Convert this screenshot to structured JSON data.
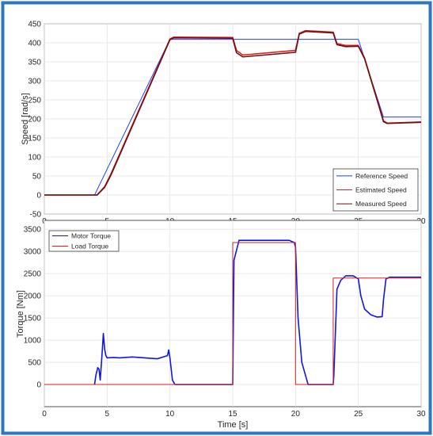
{
  "frame_color": "#2e75c2",
  "chart_data": [
    {
      "type": "line",
      "ylabel": "Speed [rad/s]",
      "xlabel": "",
      "xlim": [
        0,
        30
      ],
      "ylim": [
        -50,
        450
      ],
      "grid": true,
      "legend_position": "bottom-right",
      "xticks": [
        "0",
        "5",
        "10",
        "15",
        "20",
        "25",
        "30"
      ],
      "yticks": [
        "-50",
        "0",
        "50",
        "100",
        "150",
        "200",
        "250",
        "300",
        "350",
        "400",
        "450"
      ],
      "series": [
        {
          "name": "Reference Speed",
          "color": "#1f3fff",
          "x": [
            0,
            4.0,
            10.0,
            25.0,
            27.0,
            30.0
          ],
          "y": [
            0,
            0,
            409,
            409,
            205,
            205
          ]
        },
        {
          "name": "Estimated Speed",
          "color": "#e11d1d",
          "x": [
            0,
            4.2,
            4.8,
            5.3,
            10.0,
            10.3,
            15.0,
            15.3,
            15.8,
            20.0,
            20.3,
            20.8,
            23.0,
            23.3,
            24.0,
            25.0,
            25.5,
            26.6,
            27.0,
            27.3,
            30.0
          ],
          "y": [
            0,
            0,
            22,
            55,
            410,
            415,
            414,
            380,
            368,
            380,
            425,
            432,
            428,
            398,
            393,
            393,
            360,
            240,
            195,
            189,
            192
          ]
        },
        {
          "name": "Measured Speed",
          "color": "#6b0f0f",
          "x": [
            0,
            4.2,
            4.8,
            5.3,
            10.0,
            10.3,
            15.0,
            15.3,
            15.8,
            20.0,
            20.3,
            20.8,
            23.0,
            23.3,
            24.0,
            25.0,
            25.5,
            26.6,
            27.0,
            27.3,
            30.0
          ],
          "y": [
            0,
            0,
            20,
            52,
            408,
            413,
            412,
            374,
            363,
            375,
            423,
            430,
            426,
            395,
            390,
            391,
            358,
            238,
            193,
            188,
            191
          ]
        }
      ]
    },
    {
      "type": "line",
      "ylabel": "Torque [Nm]",
      "xlabel": "Time [s]",
      "xlim": [
        0,
        30
      ],
      "ylim": [
        -500,
        3700
      ],
      "grid": true,
      "legend_position": "top-left",
      "xticks": [
        "0",
        "5",
        "10",
        "15",
        "20",
        "25",
        "30"
      ],
      "yticks": [
        "0",
        "500",
        "1000",
        "1500",
        "2000",
        "2500",
        "3000",
        "3500"
      ],
      "series": [
        {
          "name": "Motor Torque",
          "color": "#0d17e8",
          "x": [
            4.0,
            4.1,
            4.25,
            4.35,
            4.45,
            4.6,
            4.7,
            4.8,
            4.9,
            5.0,
            5.5,
            6.0,
            7.0,
            8.0,
            9.0,
            9.8,
            9.9,
            10.0,
            10.2,
            10.4,
            14.9,
            15.0,
            15.1,
            15.5,
            16.0,
            19.5,
            19.9,
            20.0,
            20.2,
            20.5,
            21.0,
            23.0,
            23.05,
            23.3,
            23.6,
            24.0,
            24.6,
            25.0,
            25.2,
            25.5,
            26.0,
            26.5,
            26.9,
            27.0,
            27.2,
            27.5,
            30.0
          ],
          "y": [
            0,
            200,
            380,
            350,
            100,
            700,
            1150,
            800,
            650,
            600,
            610,
            600,
            620,
            600,
            580,
            650,
            780,
            600,
            100,
            0,
            0,
            0,
            2800,
            3250,
            3250,
            3250,
            3200,
            3100,
            1500,
            500,
            0,
            0,
            200,
            2150,
            2350,
            2450,
            2450,
            2380,
            2000,
            1700,
            1570,
            1520,
            1530,
            1900,
            2380,
            2420,
            2420
          ]
        },
        {
          "name": "Load Torque",
          "color": "#e11d1d",
          "x": [
            0,
            15.0,
            15.0,
            20.0,
            20.0,
            23.0,
            23.0,
            30.0
          ],
          "y": [
            0,
            0,
            3200,
            3200,
            0,
            0,
            2400,
            2400
          ]
        }
      ]
    }
  ]
}
